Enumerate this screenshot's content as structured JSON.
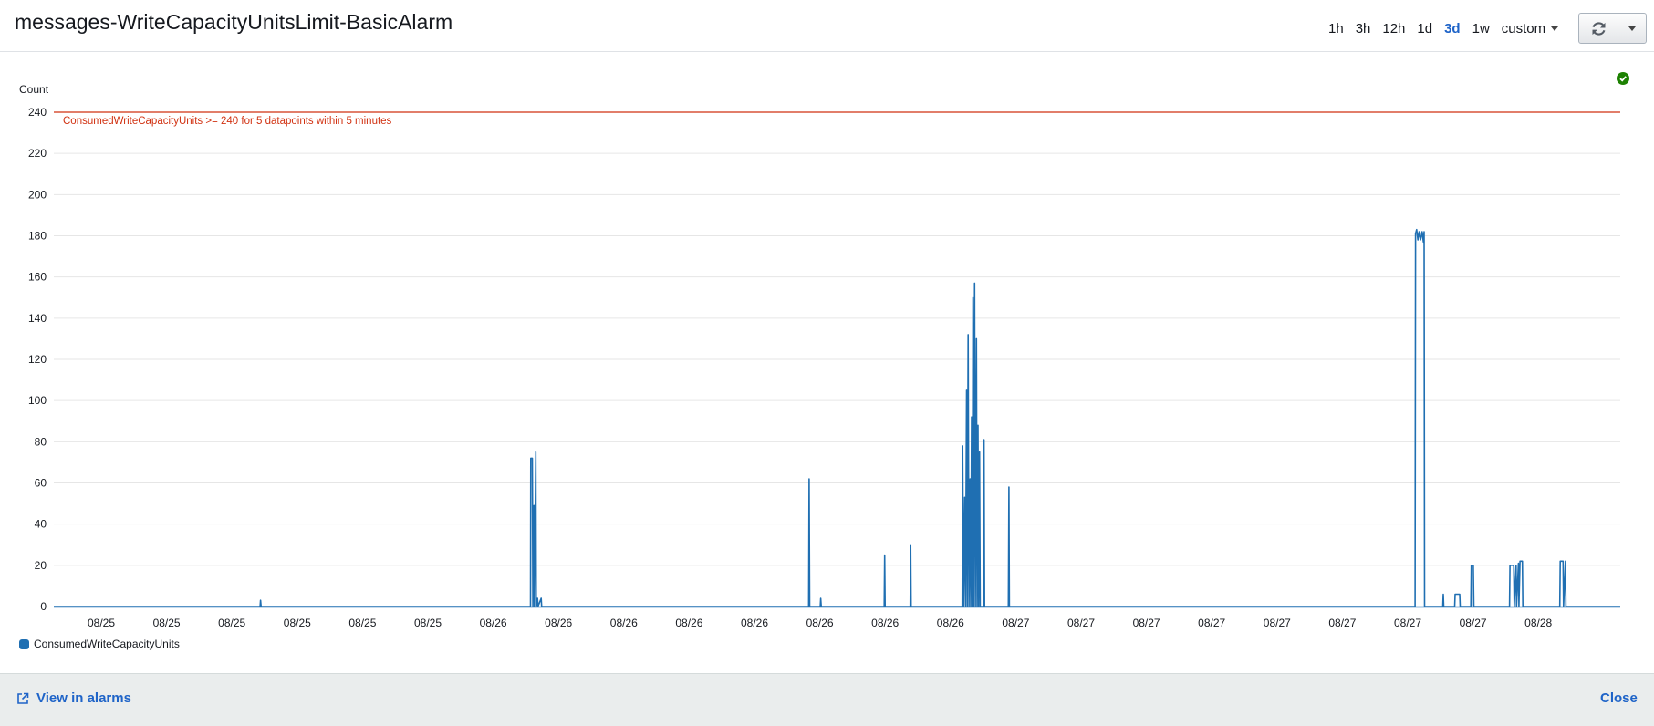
{
  "header": {
    "title": "messages-WriteCapacityUnitsLimit-BasicAlarm",
    "ranges": [
      {
        "label": "1h",
        "active": false
      },
      {
        "label": "3h",
        "active": false
      },
      {
        "label": "12h",
        "active": false
      },
      {
        "label": "1d",
        "active": false
      },
      {
        "label": "3d",
        "active": true
      },
      {
        "label": "1w",
        "active": false
      },
      {
        "label": "custom",
        "active": false
      }
    ],
    "refresh_icon": "refresh-icon",
    "dropdown_icon": "caret-down-icon"
  },
  "status": {
    "icon": "check-circle-icon",
    "color": "#1d8102"
  },
  "footer": {
    "view_link": "View in alarms",
    "view_icon": "external-link-icon",
    "close": "Close"
  },
  "chart_data": {
    "type": "line",
    "ylabel": "Count",
    "ylim": [
      0,
      240
    ],
    "yticks": [
      0,
      20,
      40,
      60,
      80,
      100,
      120,
      140,
      160,
      180,
      200,
      220,
      240
    ],
    "x_tick_labels": [
      "08/25",
      "08/25",
      "08/25",
      "08/25",
      "08/25",
      "08/25",
      "08/26",
      "08/26",
      "08/26",
      "08/26",
      "08/26",
      "08/26",
      "08/26",
      "08/26",
      "08/27",
      "08/27",
      "08/27",
      "08/27",
      "08/27",
      "08/27",
      "08/27",
      "08/27",
      "08/28"
    ],
    "grid": true,
    "threshold": {
      "value": 240,
      "label": "ConsumedWriteCapacityUnits >= 240 for 5 datapoints within 5 minutes",
      "color": "#d13212"
    },
    "series": [
      {
        "name": "ConsumedWriteCapacityUnits",
        "color": "#1f6fb2",
        "points": [
          [
            0,
            0
          ],
          [
            0.1317,
            0
          ],
          [
            0.132,
            3
          ],
          [
            0.1323,
            0
          ],
          [
            0.3043,
            0
          ],
          [
            0.3045,
            72
          ],
          [
            0.3055,
            72
          ],
          [
            0.3058,
            0
          ],
          [
            0.3065,
            49
          ],
          [
            0.3068,
            0
          ],
          [
            0.3077,
            75
          ],
          [
            0.308,
            0
          ],
          [
            0.3088,
            4
          ],
          [
            0.3091,
            0
          ],
          [
            0.3111,
            4
          ],
          [
            0.3114,
            0
          ],
          [
            0.4819,
            0
          ],
          [
            0.4822,
            62
          ],
          [
            0.4825,
            0
          ],
          [
            0.4893,
            0
          ],
          [
            0.4896,
            4
          ],
          [
            0.4899,
            0
          ],
          [
            0.5301,
            0
          ],
          [
            0.5304,
            25
          ],
          [
            0.5307,
            0
          ],
          [
            0.5467,
            0
          ],
          [
            0.547,
            30
          ],
          [
            0.5473,
            0
          ],
          [
            0.5799,
            0
          ],
          [
            0.5802,
            78
          ],
          [
            0.5808,
            0
          ],
          [
            0.5815,
            53
          ],
          [
            0.582,
            0
          ],
          [
            0.5827,
            105
          ],
          [
            0.5831,
            0
          ],
          [
            0.5837,
            132
          ],
          [
            0.5842,
            0
          ],
          [
            0.5849,
            62
          ],
          [
            0.5853,
            0
          ],
          [
            0.5859,
            92
          ],
          [
            0.5863,
            0
          ],
          [
            0.5868,
            150
          ],
          [
            0.5872,
            0
          ],
          [
            0.5878,
            157
          ],
          [
            0.5883,
            0
          ],
          [
            0.589,
            130
          ],
          [
            0.5894,
            0
          ],
          [
            0.59,
            88
          ],
          [
            0.5904,
            0
          ],
          [
            0.591,
            75
          ],
          [
            0.5914,
            0
          ],
          [
            0.5935,
            0
          ],
          [
            0.5938,
            81
          ],
          [
            0.5942,
            0
          ],
          [
            0.6094,
            0
          ],
          [
            0.6097,
            58
          ],
          [
            0.61,
            0
          ],
          [
            0.869,
            0
          ],
          [
            0.8693,
            181
          ],
          [
            0.87,
            183
          ],
          [
            0.8708,
            178
          ],
          [
            0.8716,
            182
          ],
          [
            0.8725,
            178
          ],
          [
            0.8735,
            182
          ],
          [
            0.8743,
            177
          ],
          [
            0.8748,
            182
          ],
          [
            0.8751,
            0
          ],
          [
            0.8867,
            0
          ],
          [
            0.887,
            6
          ],
          [
            0.8873,
            0
          ],
          [
            0.8943,
            0
          ],
          [
            0.8946,
            6
          ],
          [
            0.8975,
            6
          ],
          [
            0.8978,
            0
          ],
          [
            0.9046,
            0
          ],
          [
            0.9049,
            20
          ],
          [
            0.9062,
            20
          ],
          [
            0.9065,
            0
          ],
          [
            0.9293,
            0
          ],
          [
            0.9296,
            20
          ],
          [
            0.932,
            20
          ],
          [
            0.9323,
            0
          ],
          [
            0.9335,
            20
          ],
          [
            0.9338,
            0
          ],
          [
            0.935,
            21
          ],
          [
            0.9353,
            0
          ],
          [
            0.936,
            22
          ],
          [
            0.9375,
            22
          ],
          [
            0.9378,
            0
          ],
          [
            0.9614,
            0
          ],
          [
            0.9617,
            22
          ],
          [
            0.9635,
            22
          ],
          [
            0.9638,
            0
          ],
          [
            0.965,
            22
          ],
          [
            0.9653,
            0
          ],
          [
            1,
            0
          ]
        ]
      }
    ],
    "legend": {
      "position": "bottom-left"
    }
  }
}
